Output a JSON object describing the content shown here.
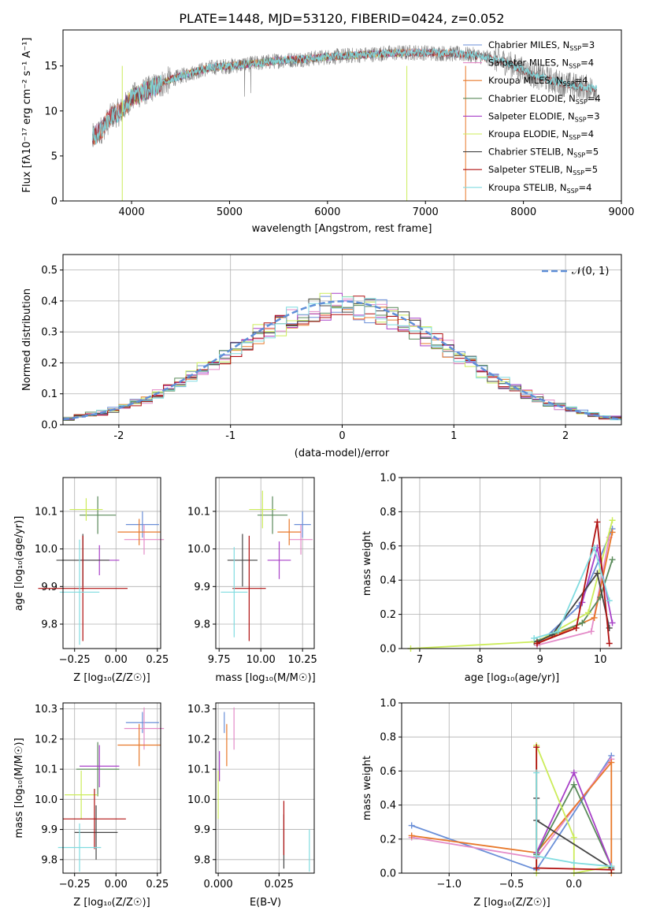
{
  "colors": {
    "C_MILES": "#6a8fd8",
    "S_MILES": "#e48bc8",
    "K_MILES": "#e8782a",
    "C_ELODIE": "#5a8a5a",
    "S_ELODIE": "#a840c8",
    "K_ELODIE": "#ccec5a",
    "C_STELIB": "#444444",
    "S_STELIB": "#b01010",
    "K_STELIB": "#80dce0",
    "gauss": "#5f8fd8",
    "data": "#808080"
  },
  "spectrum": {
    "title": "PLATE=1448, MJD=53120, FIBERID=0424, z=0.052",
    "xlabel": "wavelength [Angstrom, rest frame]",
    "ylabel": "Flux [fλ10⁻¹⁷ erg cm⁻² s⁻¹ A⁻¹]",
    "xlim": [
      3300,
      9000
    ],
    "ylim": [
      0,
      19
    ],
    "xticks": [
      4000,
      5000,
      6000,
      7000,
      8000,
      9000
    ],
    "yticks": [
      0,
      5,
      10,
      15
    ],
    "legend": [
      {
        "key": "C_MILES",
        "label": "Chabrier MILES, N",
        "sub": "SSP",
        "suffix": "=3"
      },
      {
        "key": "S_MILES",
        "label": "Salpeter MILES, N",
        "sub": "SSP",
        "suffix": "=4"
      },
      {
        "key": "K_MILES",
        "label": "Kroupa MILES, N",
        "sub": "SSP",
        "suffix": "=4"
      },
      {
        "key": "C_ELODIE",
        "label": "Chabrier ELODIE, N",
        "sub": "SSP",
        "suffix": "=4"
      },
      {
        "key": "S_ELODIE",
        "label": "Salpeter ELODIE, N",
        "sub": "SSP",
        "suffix": "=3"
      },
      {
        "key": "K_ELODIE",
        "label": "Kroupa ELODIE, N",
        "sub": "SSP",
        "suffix": "=4"
      },
      {
        "key": "C_STELIB",
        "label": "Chabrier STELIB, N",
        "sub": "SSP",
        "suffix": "=5"
      },
      {
        "key": "S_STELIB",
        "label": "Salpeter STELIB, N",
        "sub": "SSP",
        "suffix": "=5"
      },
      {
        "key": "K_STELIB",
        "label": "Kroupa STELIB, N",
        "sub": "SSP",
        "suffix": "=4"
      }
    ]
  },
  "residuals": {
    "xlabel": "(data-model)/error",
    "ylabel": "Normed distribution",
    "xlim": [
      -2.5,
      2.5
    ],
    "ylim": [
      0,
      0.55
    ],
    "xticks": [
      -2,
      -1,
      0,
      1,
      2
    ],
    "yticks": [
      0.0,
      0.1,
      0.2,
      0.3,
      0.4,
      0.5
    ],
    "legend_label": "𝒩(0, 1)"
  },
  "panels": {
    "age_label": "age  [log₁₀(age/yr)]",
    "mass_label": "mass [log₁₀(M/M☉)]",
    "z_label": "Z [log₁₀(Z/Z☉)]",
    "ebv_label": "E(B-V)",
    "mw_label": "mass weight",
    "age_ticks": [
      "9.8",
      "9.9",
      "10.0",
      "10.1"
    ],
    "mass_ticks": [
      "9.8",
      "9.9",
      "10.0",
      "10.1",
      "10.2",
      "10.3"
    ],
    "z_ticks": [
      "−0.25",
      "0.00",
      "0.25"
    ],
    "massx_ticks": [
      "9.75",
      "10.00",
      "10.25"
    ],
    "ebv_ticks": [
      "0.000",
      "0.025"
    ],
    "mw_ticks": [
      "0.0",
      "0.2",
      "0.4",
      "0.6",
      "0.8",
      "1.0"
    ],
    "agex_ticks": [
      "7",
      "8",
      "9",
      "10"
    ],
    "zx_ticks": [
      "−1.0",
      "−0.5",
      "0.0"
    ]
  },
  "chart_data": [
    {
      "type": "line",
      "title": "PLATE=1448, MJD=53120, FIBERID=0424, z=0.052",
      "xlabel": "wavelength [Angstrom, rest frame]",
      "ylabel": "Flux",
      "xlim": [
        3300,
        9000
      ],
      "ylim": [
        0,
        19
      ],
      "continuum": {
        "x": [
          3600,
          3700,
          3800,
          3900,
          4000,
          4100,
          4200,
          4400,
          4600,
          4800,
          5000,
          5200,
          5500,
          5800,
          6000,
          6300,
          6600,
          6900,
          7200,
          7500,
          7800,
          8100,
          8400,
          8700
        ],
        "y": [
          7.0,
          8.0,
          9.5,
          10.0,
          11.5,
          12.0,
          12.5,
          13.5,
          14.2,
          14.8,
          15.0,
          15.2,
          15.6,
          15.8,
          16.0,
          16.2,
          16.4,
          16.5,
          16.4,
          16.2,
          15.5,
          14.0,
          13.0,
          12.5
        ]
      }
    },
    {
      "type": "bar",
      "title": "",
      "xlabel": "(data-model)/error",
      "ylabel": "Normed distribution",
      "bin_width": 0.1,
      "series": [
        {
          "name": "𝒩(0, 1)",
          "type": "gaussian",
          "mu": 0,
          "sigma": 1
        }
      ]
    },
    {
      "type": "scatter",
      "xlabel": "Z [log₁₀(Z/Z☉)]",
      "ylabel": "age  [log₁₀(age/yr)]",
      "points": [
        {
          "key": "C_MILES",
          "x": 0.16,
          "xerr": 0.1,
          "y": 10.065,
          "yerr": 0.035
        },
        {
          "key": "S_MILES",
          "x": 0.17,
          "xerr": 0.12,
          "y": 10.025,
          "yerr": 0.04
        },
        {
          "key": "K_MILES",
          "x": 0.14,
          "xerr": 0.13,
          "y": 10.045,
          "yerr": 0.035
        },
        {
          "key": "C_ELODIE",
          "x": -0.11,
          "xerr": 0.11,
          "y": 10.09,
          "yerr": 0.05
        },
        {
          "key": "S_ELODIE",
          "x": -0.1,
          "xerr": 0.12,
          "y": 9.97,
          "yerr": 0.04
        },
        {
          "key": "K_ELODIE",
          "x": -0.18,
          "xerr": 0.1,
          "y": 10.105,
          "yerr": 0.03
        },
        {
          "key": "C_STELIB",
          "x": -0.2,
          "xerr": 0.16,
          "y": 9.97,
          "yerr": 0.07
        },
        {
          "key": "S_STELIB",
          "x": -0.2,
          "xerr": 0.27,
          "y": 9.895,
          "yerr": 0.14
        },
        {
          "key": "K_STELIB",
          "x": -0.22,
          "xerr": 0.12,
          "y": 9.885,
          "yerr": 0.14
        }
      ]
    },
    {
      "type": "scatter",
      "xlabel": "mass [log₁₀(M/M☉)]",
      "ylabel": "",
      "points": [
        {
          "key": "C_MILES",
          "x": 10.25,
          "xerr": 0.05,
          "y": 10.065,
          "yerr": 0.035
        },
        {
          "key": "S_MILES",
          "x": 10.24,
          "xerr": 0.07,
          "y": 10.025,
          "yerr": 0.04
        },
        {
          "key": "K_MILES",
          "x": 10.17,
          "xerr": 0.07,
          "y": 10.045,
          "yerr": 0.035
        },
        {
          "key": "C_ELODIE",
          "x": 10.07,
          "xerr": 0.09,
          "y": 10.09,
          "yerr": 0.05
        },
        {
          "key": "S_ELODIE",
          "x": 10.11,
          "xerr": 0.07,
          "y": 9.97,
          "yerr": 0.05
        },
        {
          "key": "K_ELODIE",
          "x": 10.01,
          "xerr": 0.08,
          "y": 10.105,
          "yerr": 0.05
        },
        {
          "key": "C_STELIB",
          "x": 9.89,
          "xerr": 0.09,
          "y": 9.97,
          "yerr": 0.07
        },
        {
          "key": "S_STELIB",
          "x": 9.93,
          "xerr": 0.1,
          "y": 9.895,
          "yerr": 0.14
        },
        {
          "key": "K_STELIB",
          "x": 9.84,
          "xerr": 0.08,
          "y": 9.885,
          "yerr": 0.12
        }
      ]
    },
    {
      "type": "line",
      "xlabel": "age  [log₁₀(age/yr)]",
      "ylabel": "mass weight",
      "xlim": [
        6.7,
        10.35
      ],
      "ylim": [
        0,
        1
      ],
      "series": [
        {
          "key": "C_MILES",
          "x": [
            8.95,
            9.65,
            10.2
          ],
          "y": [
            0.02,
            0.25,
            0.7
          ]
        },
        {
          "key": "S_MILES",
          "x": [
            8.95,
            9.85,
            10.15
          ],
          "y": [
            0.02,
            0.1,
            0.65
          ]
        },
        {
          "key": "K_MILES",
          "x": [
            8.95,
            9.9,
            10.2
          ],
          "y": [
            0.03,
            0.18,
            0.68
          ]
        },
        {
          "key": "C_ELODIE",
          "x": [
            8.9,
            9.7,
            10.0,
            10.2
          ],
          "y": [
            0.04,
            0.15,
            0.3,
            0.52
          ]
        },
        {
          "key": "S_ELODIE",
          "x": [
            9.7,
            9.95,
            10.2
          ],
          "y": [
            0.27,
            0.59,
            0.15
          ]
        },
        {
          "key": "K_ELODIE",
          "x": [
            6.85,
            8.95,
            9.8,
            10.2
          ],
          "y": [
            0.0,
            0.04,
            0.21,
            0.75
          ]
        },
        {
          "key": "C_STELIB",
          "x": [
            8.95,
            9.2,
            9.95,
            10.15
          ],
          "y": [
            0.04,
            0.08,
            0.44,
            0.12
          ]
        },
        {
          "key": "S_STELIB",
          "x": [
            8.95,
            9.6,
            9.95,
            10.15
          ],
          "y": [
            0.03,
            0.12,
            0.74,
            0.03
          ]
        },
        {
          "key": "K_STELIB",
          "x": [
            8.9,
            9.3,
            9.9,
            10.15
          ],
          "y": [
            0.06,
            0.1,
            0.59,
            0.28
          ]
        }
      ]
    },
    {
      "type": "scatter",
      "xlabel": "Z [log₁₀(Z/Z☉)]",
      "ylabel": "mass [log₁₀(M/M☉)]",
      "points": [
        {
          "key": "C_MILES",
          "x": 0.16,
          "xerr": 0.1,
          "y": 10.255,
          "yerr": 0.035
        },
        {
          "key": "S_MILES",
          "x": 0.17,
          "xerr": 0.12,
          "y": 10.235,
          "yerr": 0.07
        },
        {
          "key": "K_MILES",
          "x": 0.14,
          "xerr": 0.13,
          "y": 10.18,
          "yerr": 0.07
        },
        {
          "key": "C_ELODIE",
          "x": -0.11,
          "xerr": 0.13,
          "y": 10.1,
          "yerr": 0.09
        },
        {
          "key": "S_ELODIE",
          "x": -0.1,
          "xerr": 0.12,
          "y": 10.11,
          "yerr": 0.07
        },
        {
          "key": "K_ELODIE",
          "x": -0.21,
          "xerr": 0.1,
          "y": 10.015,
          "yerr": 0.08
        },
        {
          "key": "C_STELIB",
          "x": -0.12,
          "xerr": 0.13,
          "y": 9.89,
          "yerr": 0.09
        },
        {
          "key": "S_STELIB",
          "x": -0.13,
          "xerr": 0.19,
          "y": 9.935,
          "yerr": 0.1
        },
        {
          "key": "K_STELIB",
          "x": -0.22,
          "xerr": 0.13,
          "y": 9.84,
          "yerr": 0.08
        }
      ]
    },
    {
      "type": "scatter",
      "xlabel": "E(B-V)",
      "ylabel": "",
      "points": [
        {
          "key": "C_MILES",
          "x": 0.0025,
          "y": 10.255,
          "yerr": 0.035
        },
        {
          "key": "S_MILES",
          "x": 0.0065,
          "y": 10.235,
          "yerr": 0.07
        },
        {
          "key": "K_MILES",
          "x": 0.0035,
          "y": 10.18,
          "yerr": 0.07
        },
        {
          "key": "K_ELODIE",
          "x": 0.0,
          "y": 10.015,
          "yerr": 0.08
        },
        {
          "key": "S_ELODIE",
          "x": 0.0005,
          "y": 10.11,
          "yerr": 0.05
        },
        {
          "key": "C_STELIB",
          "x": 0.027,
          "y": 9.86,
          "yerr": 0.09
        },
        {
          "key": "S_STELIB",
          "x": 0.027,
          "y": 9.905,
          "yerr": 0.09
        },
        {
          "key": "K_STELIB",
          "x": 0.0375,
          "y": 9.83,
          "yerr": 0.07
        }
      ]
    },
    {
      "type": "line",
      "xlabel": "Z [log₁₀(Z/Z☉)]",
      "ylabel": "mass weight",
      "xlim": [
        -1.38,
        0.38
      ],
      "ylim": [
        0,
        1
      ],
      "series": [
        {
          "key": "C_MILES",
          "x": [
            -1.3,
            -0.3,
            0.3
          ],
          "y": [
            0.28,
            0.02,
            0.69
          ]
        },
        {
          "key": "S_MILES",
          "x": [
            -1.3,
            -0.3,
            0.3
          ],
          "y": [
            0.21,
            0.09,
            0.67
          ]
        },
        {
          "key": "K_MILES",
          "x": [
            -1.3,
            -0.3,
            0.3,
            0.3
          ],
          "y": [
            0.22,
            0.12,
            0.65,
            0.0
          ]
        },
        {
          "key": "C_ELODIE",
          "x": [
            -0.3,
            0.0,
            0.3
          ],
          "y": [
            0.11,
            0.52,
            0.04
          ]
        },
        {
          "key": "S_ELODIE",
          "x": [
            -0.3,
            0.0,
            0.3
          ],
          "y": [
            0.12,
            0.59,
            0.04
          ]
        },
        {
          "key": "K_ELODIE",
          "x": [
            -0.3,
            -0.3,
            0.0,
            0.0,
            0.3
          ],
          "y": [
            0.0,
            0.75,
            0.21,
            0.0,
            0.04
          ]
        },
        {
          "key": "C_STELIB",
          "x": [
            -0.3,
            -0.3,
            0.3
          ],
          "y": [
            0.44,
            0.31,
            0.03
          ]
        },
        {
          "key": "S_STELIB",
          "x": [
            -0.3,
            -0.3,
            0.3
          ],
          "y": [
            0.74,
            0.03,
            0.02
          ]
        },
        {
          "key": "K_STELIB",
          "x": [
            -0.3,
            -0.3,
            0.0,
            0.3
          ],
          "y": [
            0.59,
            0.1,
            0.06,
            0.04
          ]
        }
      ]
    }
  ]
}
